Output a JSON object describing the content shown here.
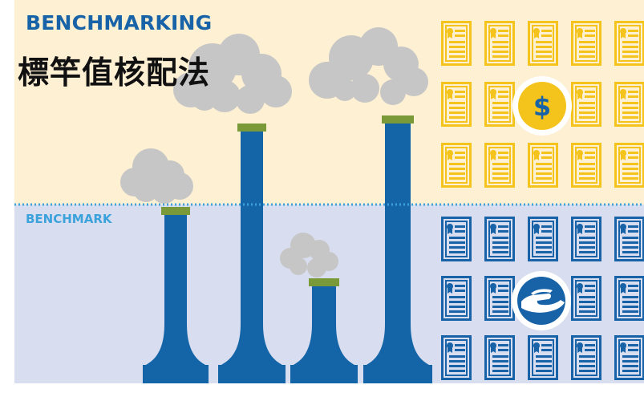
{
  "title": {
    "english": "BENCHMARKING",
    "chinese": "標竿值核配法"
  },
  "benchmark_line": {
    "label": "BENCHMARK"
  },
  "colors": {
    "upper_background": "#fdf0d3",
    "lower_background": "#d8ddef",
    "title_blue": "#1863a8",
    "chimney_blue": "#1465a8",
    "chimney_cap": "#7a9a3a",
    "smoke_gray": "#c6c6c6",
    "benchmark_line": "#3ba2dc",
    "benchmark_label": "#3ba2dc",
    "certificate_yellow": "#f4c41c",
    "certificate_blue": "#1863a8",
    "coin_yellow": "#f4c41c"
  },
  "icons": {
    "upper_grid": "certificate-icon",
    "upper_badge": "dollar-coin-icon",
    "lower_grid": "certificate-icon",
    "lower_badge": "giving-hand-icon"
  },
  "badges": {
    "dollar_symbol": "$"
  }
}
